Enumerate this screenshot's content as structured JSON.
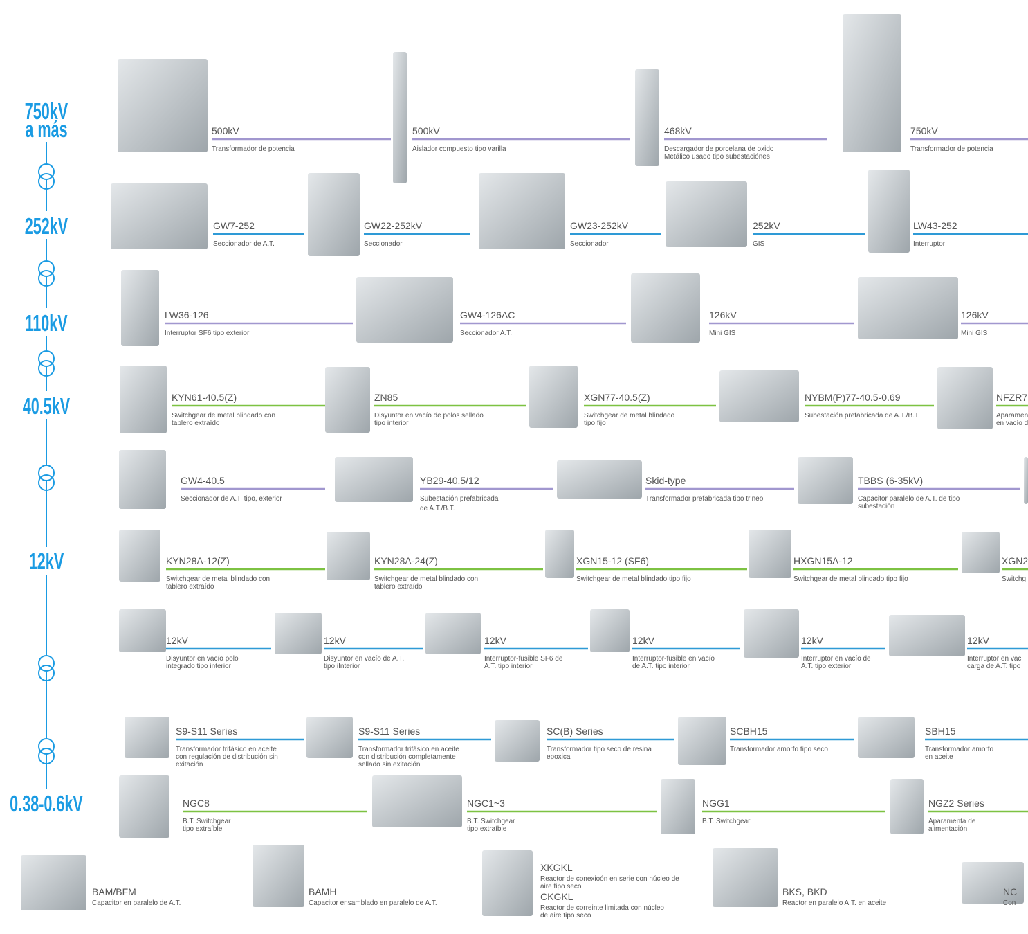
{
  "voltage_labels": [
    "750kV",
    "a más",
    "252kV",
    "110kV",
    "40.5kV",
    "12kV",
    "0.38-0.6kV"
  ],
  "rows": [
    {
      "items": [
        {
          "model": "500kV",
          "description": [
            "Transformador de potencia"
          ]
        },
        {
          "model": "500kV",
          "description": [
            "Aislador compuesto tipo varilla"
          ]
        },
        {
          "model": "468kV",
          "description": [
            "Descargador de porcelana de oxido",
            "Metálico usado tipo subestaciónes"
          ]
        },
        {
          "model": "750kV",
          "description": [
            "Transformador de potencia"
          ]
        }
      ]
    },
    {
      "items": [
        {
          "model": "GW7-252",
          "description": [
            "Seccionador de A.T."
          ]
        },
        {
          "model": "GW22-252kV",
          "description": [
            "Seccionador"
          ]
        },
        {
          "model": "GW23-252kV",
          "description": [
            "Seccionador"
          ]
        },
        {
          "model": "252kV",
          "description": [
            "GIS"
          ]
        },
        {
          "model": "LW43-252",
          "description": [
            "Interruptor"
          ]
        }
      ]
    },
    {
      "items": [
        {
          "model": "LW36-126",
          "description": [
            "Interruptor SF6 tipo exterior"
          ]
        },
        {
          "model": "GW4-126AC",
          "description": [
            "Seccionador A.T."
          ]
        },
        {
          "model": "126kV",
          "description": [
            "Mini GIS"
          ]
        },
        {
          "model": "126kV",
          "description": [
            "Mini GIS"
          ]
        }
      ]
    },
    {
      "items": [
        {
          "model": "KYN61-40.5(Z)",
          "description": [
            "Switchgear de metal blindado con",
            "tablero extraído"
          ]
        },
        {
          "model": "ZN85",
          "description": [
            "Disyuntor en vacío de polos sellado",
            "tipo interior"
          ]
        },
        {
          "model": "XGN77-40.5(Z)",
          "description": [
            "Switchgear de metal blindado",
            "tipo fijo"
          ]
        },
        {
          "model": "NYBM(P)77-40.5-0.69",
          "description": [
            "Subestación prefabricada de A.T./B.T."
          ]
        },
        {
          "model": "NFZR7",
          "description": [
            "Aparamen",
            "en vacío d"
          ]
        }
      ]
    },
    {
      "items": [
        {
          "model": "GW4-40.5",
          "description": [
            "Seccionador de A.T. tipo, exterior"
          ]
        },
        {
          "model": "YB29-40.5/12",
          "description": [
            "Subestación prefabricada",
            "de A.T./B.T."
          ]
        },
        {
          "model": "Skid-type",
          "description": [
            "Transformador prefabricada tipo trineo"
          ]
        },
        {
          "model": "TBBS (6-35kV)",
          "description": [
            "Capacitor paralelo de A.T. de tipo",
            "subestación"
          ]
        }
      ]
    },
    {
      "items": [
        {
          "model": "KYN28A-12(Z)",
          "description": [
            "Switchgear de metal blindado con",
            "tablero extraído"
          ]
        },
        {
          "model": "KYN28A-24(Z)",
          "description": [
            "Switchgear de metal blindado con",
            "tablero extraído"
          ]
        },
        {
          "model": "XGN15-12 (SF6)",
          "description": [
            "Switchgear de metal blindado tipo fijo"
          ]
        },
        {
          "model": "HXGN15A-12",
          "description": [
            "Switchgear de metal blindado tipo fijo"
          ]
        },
        {
          "model": "XGN2",
          "description": [
            "Switchg"
          ]
        }
      ]
    },
    {
      "items": [
        {
          "model": "12kV",
          "description": [
            "Disyuntor en vacío polo",
            "integrado  tipo interior"
          ]
        },
        {
          "model": "12kV",
          "description": [
            "Disyuntor en vacío de A.T.",
            "tipo iInterior"
          ]
        },
        {
          "model": "12kV",
          "description": [
            "Interruptor-fusible SF6 de",
            "A.T.  tipo interior"
          ]
        },
        {
          "model": "12kV",
          "description": [
            "Interruptor-fusible en vacío",
            "de A.T. tipo interior"
          ]
        },
        {
          "model": "12kV",
          "description": [
            "Interruptor en vacío de",
            "A.T. tipo exterior"
          ]
        },
        {
          "model": "12kV",
          "description": [
            "Interruptor en vac",
            "carga de A.T. tipo"
          ]
        }
      ]
    },
    {
      "items": [
        {
          "model": "S9-S11 Series",
          "description": [
            "Transformador trifásico en aceite",
            "con regulación de distribución sin",
            "exitación"
          ]
        },
        {
          "model": "S9-S11 Series",
          "description": [
            "Transformador trifásico en aceite",
            "con distribución completamente",
            "sellado sin exitación"
          ]
        },
        {
          "model": "SC(B) Series",
          "description": [
            "Transformador tipo seco de resina",
            "epoxica"
          ]
        },
        {
          "model": "SCBH15",
          "description": [
            "Transformador amorfo tipo seco"
          ]
        },
        {
          "model": "SBH15",
          "description": [
            "Transformador amorfo",
            "en aceite"
          ]
        }
      ]
    },
    {
      "items": [
        {
          "model": "NGC8",
          "description": [
            "B.T. Switchgear",
            "tipo extraíble"
          ]
        },
        {
          "model": "NGC1~3",
          "description": [
            "B.T. Switchgear",
            "tipo extraíble"
          ]
        },
        {
          "model": "NGG1",
          "description": [
            "B.T. Switchgear"
          ]
        },
        {
          "model": "NGZ2 Series",
          "description": [
            "Aparamenta de",
            "alimentación"
          ]
        }
      ]
    },
    {
      "items": [
        {
          "model": "BAM/BFM",
          "description": [
            "Capacitor en paralelo de A.T."
          ]
        },
        {
          "model": "BAMH",
          "description": [
            "Capacitor ensamblado en paralelo de A.T."
          ]
        },
        {
          "model": "XKGKL",
          "description": [
            "Reactor de conexioón en serie con núcleo de",
            "aire tipo seco"
          ]
        },
        {
          "model": "CKGKL",
          "description": [
            "Reactor de correinte limitada con núcleo",
            "de aire tipo seco"
          ]
        },
        {
          "model": "BKS, BKD",
          "description": [
            "Reactor en paralelo A.T. en aceite"
          ]
        },
        {
          "model": "NC",
          "description": [
            "Con"
          ]
        }
      ]
    }
  ]
}
